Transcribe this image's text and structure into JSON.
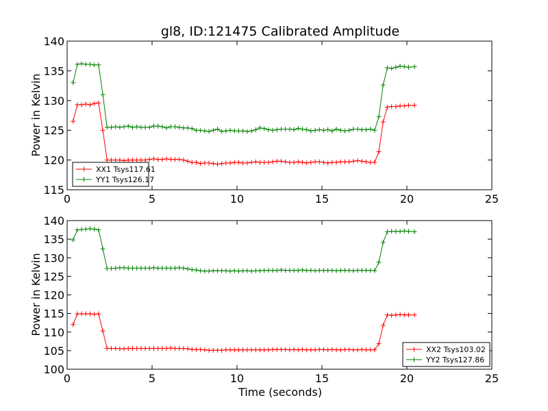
{
  "chart_data": [
    {
      "type": "line",
      "title": "gl8, ID:121475 Calibrated Amplitude",
      "xlabel": "",
      "ylabel": "Power in Kelvin",
      "xlim": [
        0,
        25
      ],
      "ylim": [
        115,
        140
      ],
      "xticks": [
        "0",
        "5",
        "10",
        "15",
        "20",
        "25"
      ],
      "yticks": [
        "115",
        "120",
        "125",
        "130",
        "135",
        "140"
      ],
      "legend_position": "lower-left",
      "series": [
        {
          "name": "XX1 Tsys117.61",
          "color": "#ff0000",
          "x": [
            0.35,
            0.6,
            0.85,
            1.1,
            1.35,
            1.6,
            1.85,
            2.1,
            2.35,
            2.6,
            2.85,
            3.1,
            3.35,
            3.6,
            3.85,
            4.1,
            4.35,
            4.6,
            4.85,
            5.1,
            5.35,
            5.6,
            5.85,
            6.1,
            6.35,
            6.6,
            6.85,
            7.1,
            7.35,
            7.6,
            7.85,
            8.1,
            8.35,
            8.6,
            8.85,
            9.1,
            9.35,
            9.6,
            9.85,
            10.1,
            10.35,
            10.6,
            10.85,
            11.1,
            11.35,
            11.6,
            11.85,
            12.1,
            12.35,
            12.6,
            12.85,
            13.1,
            13.35,
            13.6,
            13.85,
            14.1,
            14.35,
            14.6,
            14.85,
            15.1,
            15.35,
            15.6,
            15.85,
            16.1,
            16.35,
            16.6,
            16.85,
            17.1,
            17.35,
            17.6,
            17.85,
            18.1,
            18.35,
            18.6,
            18.85,
            19.1,
            19.35,
            19.6,
            19.85,
            20.1,
            20.45
          ],
          "y": [
            126.5,
            129.3,
            129.3,
            129.4,
            129.3,
            129.5,
            129.6,
            125.0,
            120.0,
            120.0,
            120.0,
            120.0,
            119.9,
            120.0,
            120.0,
            120.0,
            120.0,
            120.0,
            120.1,
            120.2,
            120.1,
            120.1,
            120.2,
            120.1,
            120.1,
            120.1,
            120.0,
            119.8,
            119.6,
            119.6,
            119.4,
            119.5,
            119.5,
            119.4,
            119.3,
            119.4,
            119.5,
            119.5,
            119.6,
            119.6,
            119.5,
            119.5,
            119.6,
            119.7,
            119.6,
            119.6,
            119.6,
            119.7,
            119.8,
            119.8,
            119.7,
            119.6,
            119.6,
            119.7,
            119.6,
            119.5,
            119.6,
            119.7,
            119.7,
            119.6,
            119.5,
            119.6,
            119.6,
            119.7,
            119.7,
            119.7,
            119.8,
            119.9,
            119.8,
            119.7,
            119.6,
            119.6,
            121.4,
            126.4,
            128.9,
            129.0,
            129.0,
            129.1,
            129.1,
            129.2,
            129.2
          ]
        },
        {
          "name": "YY1 Tsys126.17",
          "color": "#008000",
          "x": [
            0.35,
            0.6,
            0.85,
            1.1,
            1.35,
            1.6,
            1.85,
            2.1,
            2.35,
            2.6,
            2.85,
            3.1,
            3.35,
            3.6,
            3.85,
            4.1,
            4.35,
            4.6,
            4.85,
            5.1,
            5.35,
            5.6,
            5.85,
            6.1,
            6.35,
            6.6,
            6.85,
            7.1,
            7.35,
            7.6,
            7.85,
            8.1,
            8.35,
            8.6,
            8.85,
            9.1,
            9.35,
            9.6,
            9.85,
            10.1,
            10.35,
            10.6,
            10.85,
            11.1,
            11.35,
            11.6,
            11.85,
            12.1,
            12.35,
            12.6,
            12.85,
            13.1,
            13.35,
            13.6,
            13.85,
            14.1,
            14.35,
            14.6,
            14.85,
            15.1,
            15.35,
            15.6,
            15.85,
            16.1,
            16.35,
            16.6,
            16.85,
            17.1,
            17.35,
            17.6,
            17.85,
            18.1,
            18.35,
            18.6,
            18.85,
            19.1,
            19.35,
            19.6,
            19.85,
            20.1,
            20.45
          ],
          "y": [
            133.0,
            136.1,
            136.2,
            136.1,
            136.1,
            136.0,
            136.0,
            131.0,
            125.5,
            125.5,
            125.6,
            125.5,
            125.6,
            125.7,
            125.5,
            125.6,
            125.5,
            125.5,
            125.5,
            125.7,
            125.7,
            125.6,
            125.4,
            125.6,
            125.6,
            125.5,
            125.4,
            125.4,
            125.3,
            125.0,
            125.0,
            124.9,
            124.8,
            125.0,
            125.2,
            124.8,
            124.9,
            125.0,
            124.9,
            124.9,
            124.9,
            124.8,
            124.9,
            125.1,
            125.4,
            125.3,
            125.1,
            125.0,
            125.1,
            125.2,
            125.2,
            125.2,
            125.1,
            125.3,
            125.2,
            125.1,
            124.9,
            125.0,
            125.1,
            125.0,
            125.1,
            124.9,
            125.2,
            125.0,
            124.9,
            125.0,
            125.2,
            125.2,
            125.1,
            125.1,
            125.2,
            125.0,
            127.3,
            132.6,
            135.5,
            135.4,
            135.6,
            135.8,
            135.7,
            135.6,
            135.7
          ]
        }
      ]
    },
    {
      "type": "line",
      "title": "",
      "xlabel": "Time (seconds)",
      "ylabel": "Power in Kelvin",
      "xlim": [
        0,
        25
      ],
      "ylim": [
        100,
        140
      ],
      "xticks": [
        "0",
        "5",
        "10",
        "15",
        "20",
        "25"
      ],
      "yticks": [
        "100",
        "105",
        "110",
        "115",
        "120",
        "125",
        "130",
        "135",
        "140"
      ],
      "legend_position": "lower-right",
      "series": [
        {
          "name": "XX2 Tsys103.02",
          "color": "#ff0000",
          "x": [
            0.35,
            0.6,
            0.85,
            1.1,
            1.35,
            1.6,
            1.85,
            2.1,
            2.35,
            2.6,
            2.85,
            3.1,
            3.35,
            3.6,
            3.85,
            4.1,
            4.35,
            4.6,
            4.85,
            5.1,
            5.35,
            5.6,
            5.85,
            6.1,
            6.35,
            6.6,
            6.85,
            7.1,
            7.35,
            7.6,
            7.85,
            8.1,
            8.35,
            8.6,
            8.85,
            9.1,
            9.35,
            9.6,
            9.85,
            10.1,
            10.35,
            10.6,
            10.85,
            11.1,
            11.35,
            11.6,
            11.85,
            12.1,
            12.35,
            12.6,
            12.85,
            13.1,
            13.35,
            13.6,
            13.85,
            14.1,
            14.35,
            14.6,
            14.85,
            15.1,
            15.35,
            15.6,
            15.85,
            16.1,
            16.35,
            16.6,
            16.85,
            17.1,
            17.35,
            17.6,
            17.85,
            18.1,
            18.35,
            18.6,
            18.85,
            19.1,
            19.35,
            19.6,
            19.85,
            20.1,
            20.45
          ],
          "y": [
            112.0,
            114.9,
            114.9,
            114.9,
            114.9,
            114.8,
            114.9,
            110.3,
            105.6,
            105.6,
            105.6,
            105.5,
            105.5,
            105.6,
            105.6,
            105.6,
            105.6,
            105.6,
            105.6,
            105.6,
            105.6,
            105.6,
            105.6,
            105.7,
            105.6,
            105.6,
            105.6,
            105.5,
            105.3,
            105.3,
            105.3,
            105.2,
            105.1,
            105.1,
            105.1,
            105.1,
            105.2,
            105.2,
            105.2,
            105.2,
            105.2,
            105.2,
            105.2,
            105.2,
            105.2,
            105.2,
            105.2,
            105.3,
            105.3,
            105.3,
            105.3,
            105.2,
            105.3,
            105.2,
            105.3,
            105.2,
            105.2,
            105.2,
            105.3,
            105.3,
            105.2,
            105.3,
            105.2,
            105.2,
            105.3,
            105.3,
            105.2,
            105.2,
            105.3,
            105.2,
            105.2,
            105.2,
            106.9,
            111.8,
            114.6,
            114.5,
            114.6,
            114.7,
            114.6,
            114.6,
            114.6
          ]
        },
        {
          "name": "YY2 Tsys127.86",
          "color": "#008000",
          "x": [
            0.35,
            0.6,
            0.85,
            1.1,
            1.35,
            1.6,
            1.85,
            2.1,
            2.35,
            2.6,
            2.85,
            3.1,
            3.35,
            3.6,
            3.85,
            4.1,
            4.35,
            4.6,
            4.85,
            5.1,
            5.35,
            5.6,
            5.85,
            6.1,
            6.35,
            6.6,
            6.85,
            7.1,
            7.35,
            7.6,
            7.85,
            8.1,
            8.35,
            8.6,
            8.85,
            9.1,
            9.35,
            9.6,
            9.85,
            10.1,
            10.35,
            10.6,
            10.85,
            11.1,
            11.35,
            11.6,
            11.85,
            12.1,
            12.35,
            12.6,
            12.85,
            13.1,
            13.35,
            13.6,
            13.85,
            14.1,
            14.35,
            14.6,
            14.85,
            15.1,
            15.35,
            15.6,
            15.85,
            16.1,
            16.35,
            16.6,
            16.85,
            17.1,
            17.35,
            17.6,
            17.85,
            18.1,
            18.35,
            18.6,
            18.85,
            19.1,
            19.35,
            19.6,
            19.85,
            20.1,
            20.45
          ],
          "y": [
            134.8,
            137.5,
            137.6,
            137.7,
            137.8,
            137.7,
            137.5,
            132.4,
            127.1,
            127.1,
            127.2,
            127.3,
            127.3,
            127.2,
            127.2,
            127.2,
            127.2,
            127.2,
            127.2,
            127.3,
            127.2,
            127.2,
            127.2,
            127.2,
            127.2,
            127.3,
            127.2,
            127.0,
            126.8,
            126.7,
            126.5,
            126.4,
            126.4,
            126.5,
            126.5,
            126.5,
            126.5,
            126.4,
            126.5,
            126.4,
            126.5,
            126.5,
            126.4,
            126.5,
            126.5,
            126.6,
            126.6,
            126.6,
            126.6,
            126.7,
            126.6,
            126.6,
            126.6,
            126.6,
            126.7,
            126.6,
            126.6,
            126.5,
            126.6,
            126.6,
            126.6,
            126.6,
            126.5,
            126.6,
            126.6,
            126.6,
            126.5,
            126.6,
            126.6,
            126.6,
            126.6,
            126.5,
            128.8,
            134.1,
            137.0,
            137.1,
            137.1,
            137.1,
            137.2,
            137.1,
            137.0
          ]
        }
      ]
    }
  ]
}
